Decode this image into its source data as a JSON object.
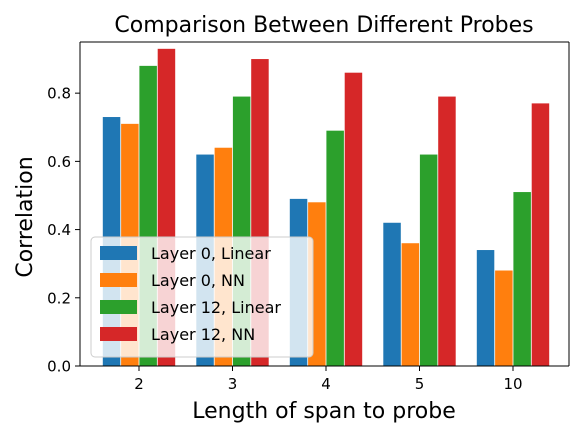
{
  "chart_data": {
    "type": "bar",
    "title": "Comparison Between Different Probes",
    "xlabel": "Length of span to probe",
    "ylabel": "Correlation",
    "categories": [
      "2",
      "3",
      "4",
      "5",
      "10"
    ],
    "ylim": [
      0,
      0.95
    ],
    "yticks": [
      "0.0",
      "0.2",
      "0.4",
      "0.6",
      "0.8"
    ],
    "grid": false,
    "legend_position": "lower-left",
    "series": [
      {
        "name": "Layer 0, Linear",
        "color": "#1f77b4",
        "values": [
          0.73,
          0.62,
          0.49,
          0.42,
          0.34
        ]
      },
      {
        "name": "Layer 0, NN",
        "color": "#ff7f0e",
        "values": [
          0.71,
          0.64,
          0.48,
          0.36,
          0.28
        ]
      },
      {
        "name": "Layer 12, Linear",
        "color": "#2ca02c",
        "values": [
          0.88,
          0.79,
          0.69,
          0.62,
          0.51
        ]
      },
      {
        "name": "Layer 12, NN",
        "color": "#d62728",
        "values": [
          0.93,
          0.9,
          0.86,
          0.79,
          0.77
        ]
      }
    ]
  }
}
